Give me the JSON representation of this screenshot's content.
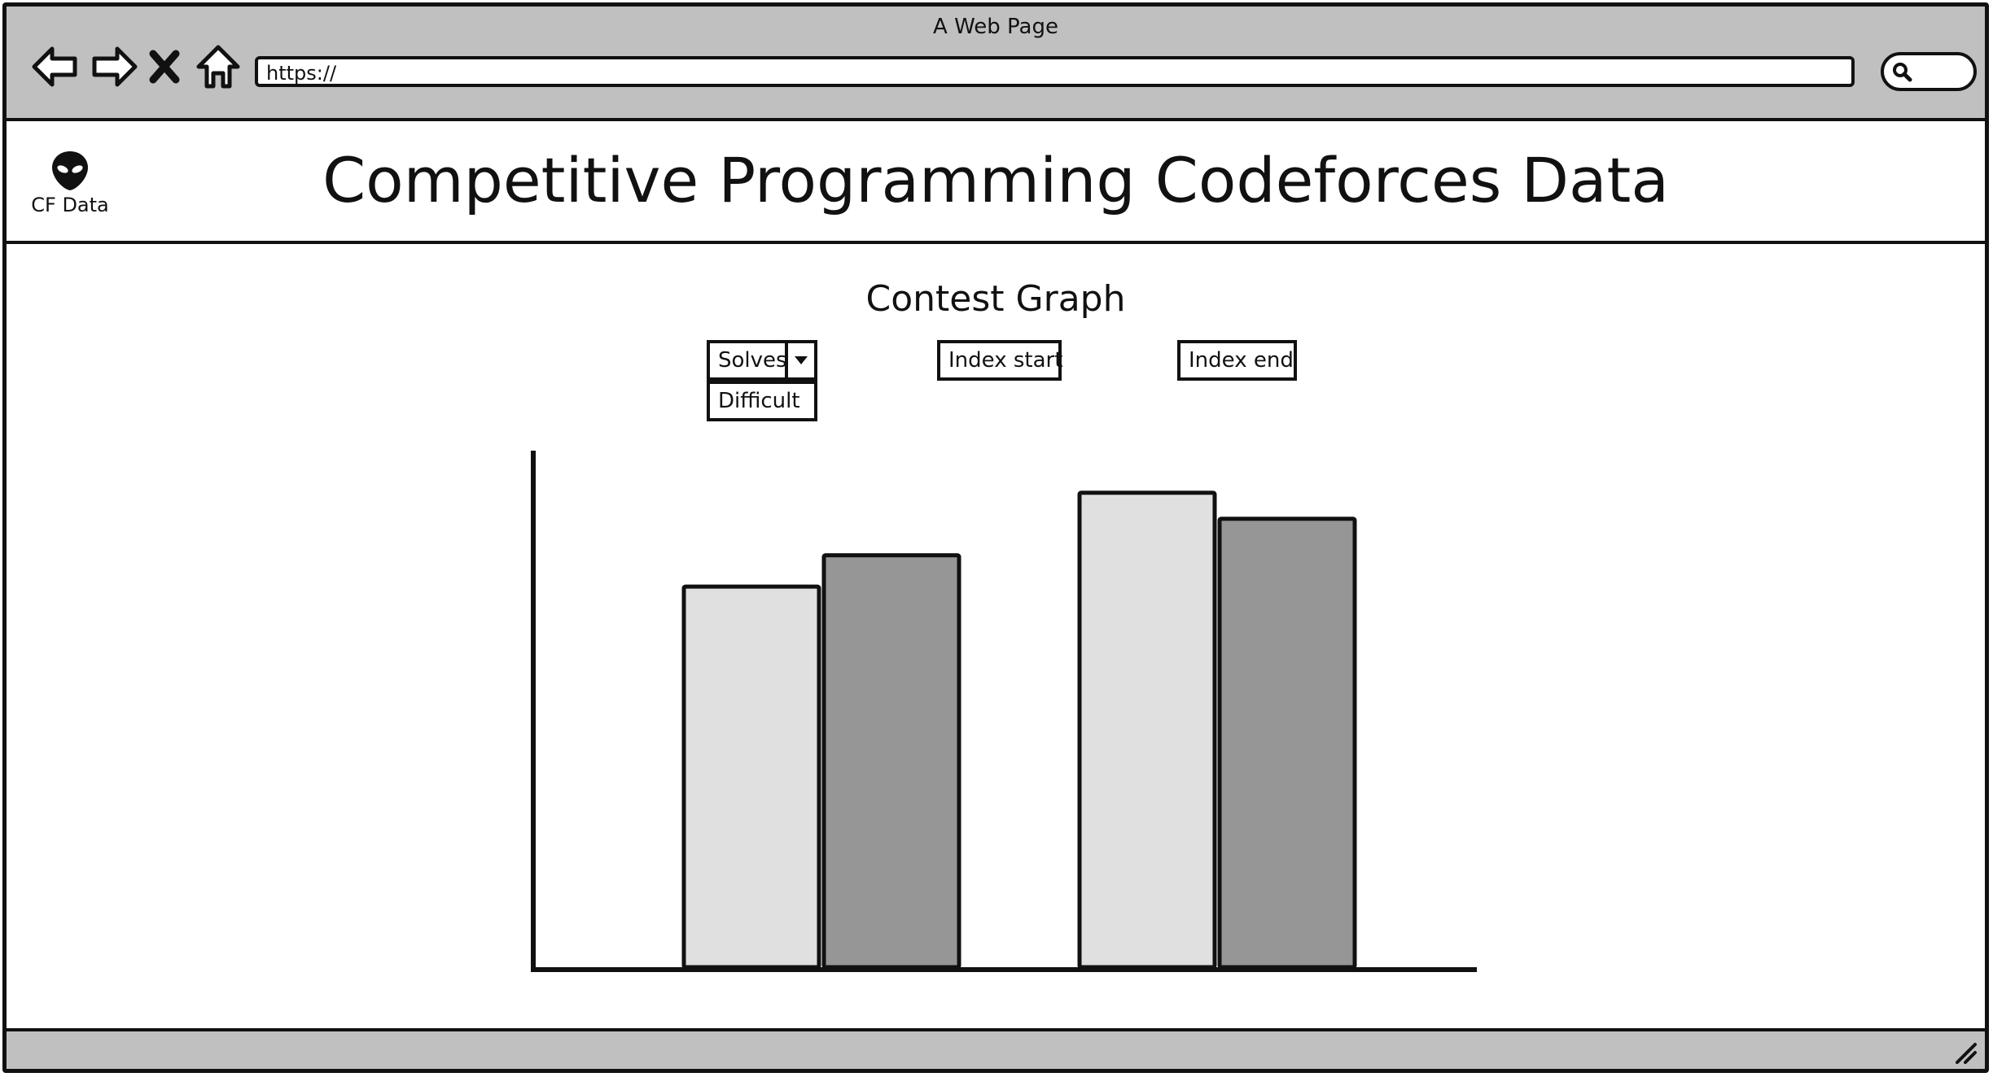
{
  "window": {
    "title": "A Web Page"
  },
  "browser": {
    "url": "https://",
    "nav": {
      "back_icon": "back-arrow-icon",
      "forward_icon": "forward-arrow-icon",
      "stop_icon": "close-icon",
      "home_icon": "home-icon"
    },
    "search_icon": "search-icon"
  },
  "header": {
    "logo_icon": "alien-icon",
    "logo_text": "CF Data",
    "title": "Competitive Programming Codeforces Data"
  },
  "graph": {
    "title": "Contest Graph",
    "metric_select": {
      "selected": "Solves",
      "options": [
        "Difficult"
      ]
    },
    "index_start": {
      "label": "Index start"
    },
    "index_end": {
      "label": "Index end"
    }
  },
  "chart_data": {
    "type": "bar",
    "categories": [
      "",
      ""
    ],
    "series": [
      {
        "values": [
          73,
          91
        ],
        "color": "#e0e0e0"
      },
      {
        "values": [
          79,
          86
        ],
        "color": "#969696"
      }
    ],
    "title": "",
    "xlabel": "",
    "ylabel": "",
    "ylim": [
      0,
      100
    ],
    "grid": false,
    "legend": "none"
  }
}
